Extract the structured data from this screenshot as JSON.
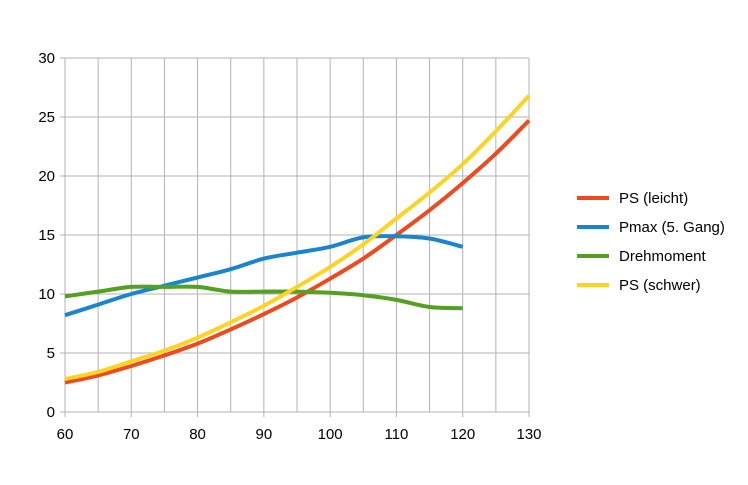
{
  "chart_data": {
    "type": "line",
    "title": "",
    "xlabel": "",
    "ylabel": "",
    "xlim": [
      60,
      130
    ],
    "ylim": [
      0,
      30
    ],
    "x_ticks": [
      60,
      70,
      80,
      90,
      100,
      110,
      120,
      130
    ],
    "y_ticks": [
      0,
      5,
      10,
      15,
      20,
      25,
      30
    ],
    "x_minor_step": 5,
    "grid": true,
    "legend_position": "right",
    "series": [
      {
        "name": "PS (leicht)",
        "color": "#ee4a1e",
        "x": [
          60,
          65,
          70,
          75,
          80,
          85,
          90,
          95,
          100,
          105,
          110,
          115,
          120,
          125,
          130
        ],
        "y": [
          2.5,
          3.1,
          3.9,
          4.8,
          5.8,
          7.0,
          8.3,
          9.7,
          11.3,
          13.0,
          15.0,
          17.1,
          19.4,
          21.9,
          24.7
        ]
      },
      {
        "name": "Pmax (5. Gang)",
        "color": "#1a84cf",
        "x": [
          60,
          65,
          70,
          75,
          80,
          85,
          90,
          95,
          100,
          105,
          110,
          115,
          120
        ],
        "y": [
          8.2,
          9.1,
          10.0,
          10.7,
          11.4,
          12.1,
          13.0,
          13.5,
          14.0,
          14.8,
          14.9,
          14.7,
          14.0
        ]
      },
      {
        "name": "Drehmoment",
        "color": "#54a021",
        "x": [
          60,
          65,
          70,
          75,
          80,
          85,
          90,
          95,
          100,
          105,
          110,
          115,
          120
        ],
        "y": [
          9.8,
          10.2,
          10.6,
          10.6,
          10.6,
          10.2,
          10.2,
          10.2,
          10.1,
          9.9,
          9.5,
          8.9,
          8.8
        ]
      },
      {
        "name": "PS (schwer)",
        "color": "#ffd321",
        "x": [
          60,
          65,
          70,
          75,
          80,
          85,
          90,
          95,
          100,
          105,
          110,
          115,
          120,
          125,
          130
        ],
        "y": [
          2.8,
          3.4,
          4.3,
          5.2,
          6.3,
          7.6,
          9.0,
          10.6,
          12.3,
          14.2,
          16.4,
          18.6,
          21.0,
          23.8,
          26.8
        ]
      }
    ]
  }
}
